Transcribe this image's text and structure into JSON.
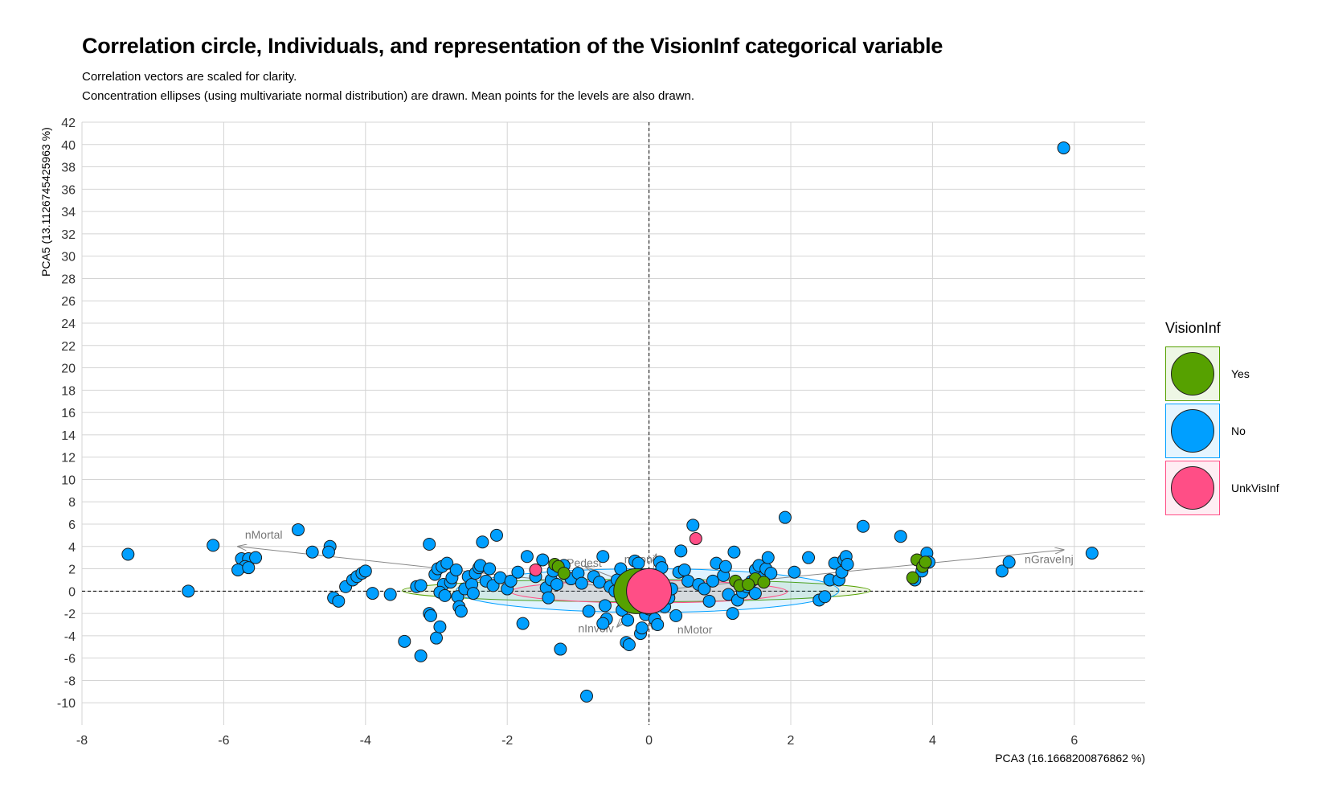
{
  "title": "Correlation circle, Individuals, and representation of the VisionInf categorical variable",
  "subtitle_lines": [
    "Correlation vectors are scaled for clarity.",
    "Concentration ellipses (using multivariate normal distribution) are drawn. Mean points for the levels are also drawn."
  ],
  "chart_data": {
    "type": "scatter",
    "xlabel": "PCA3 (16.1668200876862 %)",
    "ylabel": "PCA5 (13.1126745425963 %)",
    "xlim": [
      -8,
      7
    ],
    "ylim": [
      -12,
      42
    ],
    "x_ticks": [
      -8,
      -6,
      -4,
      -2,
      0,
      2,
      4,
      6
    ],
    "y_ticks": [
      -10,
      -8,
      -6,
      -4,
      -2,
      0,
      2,
      4,
      6,
      8,
      10,
      12,
      14,
      16,
      18,
      20,
      22,
      24,
      26,
      28,
      30,
      32,
      34,
      36,
      38,
      40,
      42
    ],
    "grid": true,
    "legend": {
      "title": "VisionInf",
      "placement": "right",
      "items": [
        {
          "label": "Yes",
          "color": "#56A100"
        },
        {
          "label": "No",
          "color": "#009FFF"
        },
        {
          "label": "UnkVisInf",
          "color": "#FF4E86"
        }
      ]
    },
    "groups": [
      {
        "level": "Yes",
        "color": "#56A100",
        "mean": [
          -0.18,
          0.0
        ],
        "ellipse": {
          "center": [
            -0.18,
            0.05
          ],
          "rx": 3.3,
          "ry": 1.0
        },
        "points": [
          [
            -1.33,
            2.4
          ],
          [
            -1.28,
            2.2
          ],
          [
            3.78,
            2.8
          ],
          [
            3.86,
            2.2
          ],
          [
            3.72,
            1.2
          ],
          [
            1.22,
            0.9
          ],
          [
            1.28,
            0.5
          ],
          [
            1.5,
            1.1
          ],
          [
            1.62,
            0.8
          ],
          [
            -1.2,
            1.6
          ],
          [
            3.9,
            2.6
          ],
          [
            1.4,
            0.6
          ]
        ]
      },
      {
        "level": "No",
        "color": "#009FFF",
        "mean": [
          -0.02,
          0.0
        ],
        "ellipse": {
          "center": [
            -0.02,
            0.05
          ],
          "rx": 2.7,
          "ry": 1.95
        },
        "points": [
          [
            -7.35,
            3.3
          ],
          [
            -6.5,
            0.0
          ],
          [
            -6.15,
            4.1
          ],
          [
            -5.75,
            2.9
          ],
          [
            -5.65,
            2.9
          ],
          [
            -5.55,
            3.0
          ],
          [
            -5.7,
            2.2
          ],
          [
            -5.8,
            1.9
          ],
          [
            -5.65,
            2.1
          ],
          [
            -4.95,
            5.5
          ],
          [
            -4.75,
            3.5
          ],
          [
            -4.5,
            4.0
          ],
          [
            -4.52,
            3.5
          ],
          [
            -4.45,
            -0.6
          ],
          [
            -4.38,
            -0.9
          ],
          [
            -4.28,
            0.4
          ],
          [
            -4.18,
            1.0
          ],
          [
            -4.12,
            1.3
          ],
          [
            -4.05,
            1.6
          ],
          [
            -4.0,
            1.8
          ],
          [
            -3.9,
            -0.2
          ],
          [
            -3.65,
            -0.3
          ],
          [
            -3.45,
            -4.5
          ],
          [
            -3.22,
            -5.8
          ],
          [
            -3.28,
            0.4
          ],
          [
            -3.22,
            0.5
          ],
          [
            -3.1,
            4.2
          ],
          [
            -3.1,
            -2.0
          ],
          [
            -3.08,
            -2.2
          ],
          [
            -3.0,
            -4.2
          ],
          [
            -2.95,
            -3.2
          ],
          [
            -3.02,
            1.5
          ],
          [
            -2.98,
            2.0
          ],
          [
            -2.92,
            2.2
          ],
          [
            -2.85,
            2.5
          ],
          [
            -2.9,
            0.6
          ],
          [
            -2.95,
            -0.1
          ],
          [
            -2.88,
            -0.4
          ],
          [
            -2.8,
            0.8
          ],
          [
            -2.78,
            1.2
          ],
          [
            -2.72,
            1.9
          ],
          [
            -2.7,
            -0.5
          ],
          [
            -2.68,
            -1.4
          ],
          [
            -2.65,
            -1.8
          ],
          [
            -2.6,
            0.2
          ],
          [
            -2.55,
            1.3
          ],
          [
            -2.5,
            0.6
          ],
          [
            -2.48,
            -0.2
          ],
          [
            -2.45,
            1.6
          ],
          [
            -2.4,
            2.1
          ],
          [
            -2.38,
            2.3
          ],
          [
            -2.35,
            4.4
          ],
          [
            -2.3,
            0.9
          ],
          [
            -2.25,
            2.0
          ],
          [
            -2.2,
            0.5
          ],
          [
            -2.15,
            5.0
          ],
          [
            -2.1,
            1.2
          ],
          [
            -2.0,
            0.2
          ],
          [
            -1.95,
            0.9
          ],
          [
            -1.85,
            1.7
          ],
          [
            -1.78,
            -2.9
          ],
          [
            -1.72,
            3.1
          ],
          [
            -1.6,
            1.3
          ],
          [
            -1.5,
            2.8
          ],
          [
            -1.45,
            0.3
          ],
          [
            -1.42,
            -0.6
          ],
          [
            -1.38,
            1.0
          ],
          [
            -1.35,
            1.8
          ],
          [
            -1.3,
            0.6
          ],
          [
            -1.25,
            -5.2
          ],
          [
            -1.2,
            2.3
          ],
          [
            -1.1,
            1.1
          ],
          [
            -1.0,
            1.6
          ],
          [
            -0.95,
            0.7
          ],
          [
            -0.88,
            -9.4
          ],
          [
            -0.85,
            -1.8
          ],
          [
            -0.78,
            1.3
          ],
          [
            -0.7,
            0.8
          ],
          [
            -0.65,
            3.1
          ],
          [
            -0.62,
            -1.3
          ],
          [
            -0.6,
            -2.5
          ],
          [
            -0.65,
            -2.9
          ],
          [
            -0.55,
            0.4
          ],
          [
            -0.48,
            0.0
          ],
          [
            -0.45,
            1.0
          ],
          [
            -0.4,
            2.0
          ],
          [
            -0.38,
            -1.7
          ],
          [
            -0.32,
            -4.6
          ],
          [
            -0.28,
            -4.8
          ],
          [
            -0.3,
            -2.6
          ],
          [
            -0.25,
            0.6
          ],
          [
            -0.2,
            2.7
          ],
          [
            -0.15,
            2.5
          ],
          [
            -0.12,
            -3.8
          ],
          [
            -0.1,
            -3.3
          ],
          [
            -0.05,
            -2.1
          ],
          [
            0.0,
            -1.6
          ],
          [
            0.05,
            1.3
          ],
          [
            0.08,
            -2.5
          ],
          [
            0.12,
            -3.0
          ],
          [
            0.15,
            2.6
          ],
          [
            0.18,
            2.1
          ],
          [
            0.22,
            -1.4
          ],
          [
            0.28,
            -0.6
          ],
          [
            0.32,
            0.2
          ],
          [
            0.38,
            -2.2
          ],
          [
            0.42,
            1.7
          ],
          [
            0.45,
            3.6
          ],
          [
            0.5,
            1.9
          ],
          [
            0.55,
            0.9
          ],
          [
            0.62,
            5.9
          ],
          [
            0.7,
            0.6
          ],
          [
            0.78,
            0.2
          ],
          [
            0.85,
            -0.9
          ],
          [
            0.9,
            0.9
          ],
          [
            0.95,
            2.5
          ],
          [
            1.05,
            1.4
          ],
          [
            1.08,
            2.2
          ],
          [
            1.12,
            -0.3
          ],
          [
            1.18,
            -2.0
          ],
          [
            1.2,
            3.5
          ],
          [
            1.25,
            -0.8
          ],
          [
            1.32,
            -0.1
          ],
          [
            1.38,
            0.4
          ],
          [
            1.45,
            0.9
          ],
          [
            1.5,
            1.9
          ],
          [
            1.55,
            2.3
          ],
          [
            1.6,
            1.2
          ],
          [
            1.65,
            2.0
          ],
          [
            1.68,
            3.0
          ],
          [
            1.72,
            1.6
          ],
          [
            1.5,
            -0.2
          ],
          [
            1.92,
            6.6
          ],
          [
            2.05,
            1.7
          ],
          [
            2.25,
            3.0
          ],
          [
            2.4,
            -0.8
          ],
          [
            2.48,
            -0.5
          ],
          [
            2.55,
            1.0
          ],
          [
            2.62,
            2.5
          ],
          [
            2.68,
            1.0
          ],
          [
            2.72,
            1.7
          ],
          [
            2.75,
            2.8
          ],
          [
            2.78,
            3.1
          ],
          [
            2.8,
            2.4
          ],
          [
            3.02,
            5.8
          ],
          [
            3.55,
            4.9
          ],
          [
            3.75,
            1.0
          ],
          [
            3.85,
            1.8
          ],
          [
            3.92,
            3.4
          ],
          [
            3.95,
            2.6
          ],
          [
            4.98,
            1.8
          ],
          [
            5.08,
            2.6
          ],
          [
            5.85,
            39.7
          ],
          [
            6.25,
            3.4
          ]
        ]
      },
      {
        "level": "UnkVisInf",
        "color": "#FF4E86",
        "mean": [
          0.0,
          0.0
        ],
        "ellipse": {
          "center": [
            0.0,
            -0.05
          ],
          "rx": 1.95,
          "ry": 1.0
        },
        "points": [
          [
            -1.6,
            1.9
          ],
          [
            0.66,
            4.7
          ]
        ]
      }
    ],
    "variables": [
      {
        "name": "nMortal",
        "end": [
          -5.8,
          4.0
        ],
        "label_at": [
          -5.7,
          4.7
        ]
      },
      {
        "name": "nGraveInj",
        "end": [
          5.85,
          3.7
        ],
        "label_at": [
          5.3,
          2.5
        ]
      },
      {
        "name": "nPedest",
        "end": [
          -0.9,
          2.2
        ],
        "label_at": [
          -1.25,
          2.2
        ]
      },
      {
        "name": "nMoni",
        "end": [
          0.1,
          3.3
        ],
        "label_at": [
          -0.35,
          2.5
        ]
      },
      {
        "name": "nInvolv",
        "end": [
          -0.45,
          -3.2
        ],
        "label_at": [
          -1.0,
          -3.7
        ]
      },
      {
        "name": "nMotor",
        "end": [
          0.05,
          -3.4
        ],
        "label_at": [
          0.4,
          -3.8
        ]
      }
    ]
  }
}
